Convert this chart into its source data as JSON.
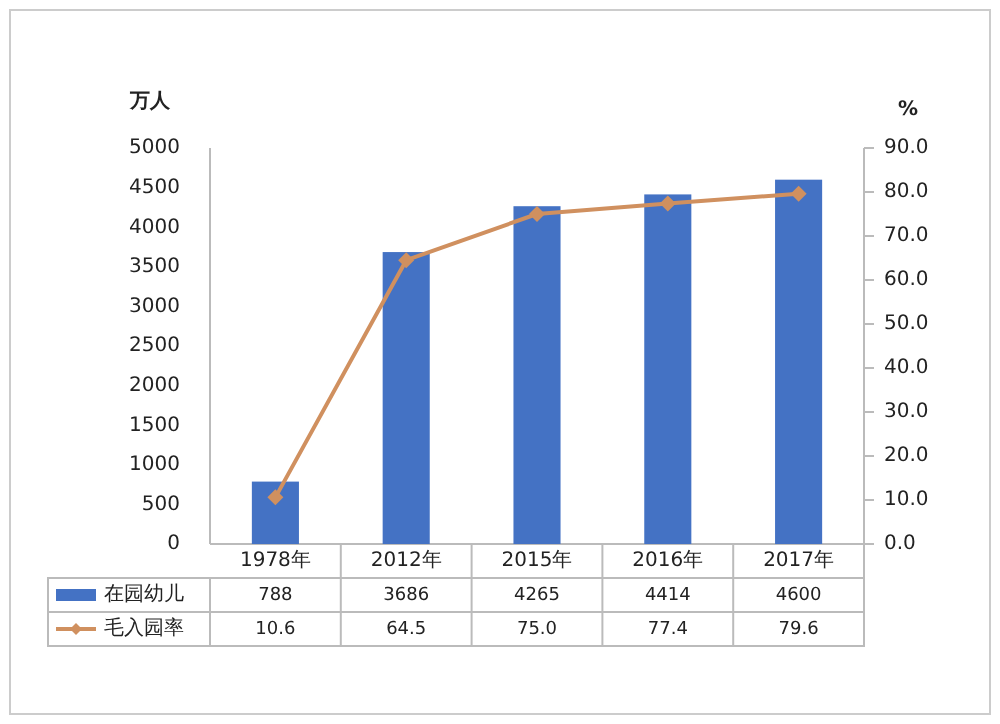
{
  "chart_data": {
    "type": "bar",
    "ylabel": "万人",
    "y2label": "%",
    "categories": [
      "1978年",
      "2012年",
      "2015年",
      "2016年",
      "2017年"
    ],
    "series": [
      {
        "name": "在园幼儿",
        "color": "#4472c4",
        "values": [
          788,
          3686,
          4265,
          4414,
          4600
        ]
      },
      {
        "name": "毛入园率",
        "type": "line",
        "axis": "y2",
        "marker": "diamond",
        "color": "#d0905f",
        "values": [
          10.6,
          64.5,
          75.0,
          77.4,
          79.6
        ],
        "value_labels": [
          "10.6",
          "64.5",
          "75.0",
          "77.4",
          "79.6"
        ]
      }
    ],
    "ylim": [
      0,
      5000
    ],
    "yticks": [
      0,
      500,
      1000,
      1500,
      2000,
      2500,
      3000,
      3500,
      4000,
      4500,
      5000
    ],
    "y2lim": [
      0,
      90
    ],
    "y2ticks": [
      {
        "value": 0,
        "label": "0.0"
      },
      {
        "value": 10,
        "label": "10.0"
      },
      {
        "value": 20,
        "label": "20.0"
      },
      {
        "value": 30,
        "label": "30.0"
      },
      {
        "value": 40,
        "label": "40.0"
      },
      {
        "value": 50,
        "label": "50.0"
      },
      {
        "value": 60,
        "label": "60.0"
      },
      {
        "value": 70,
        "label": "70.0"
      },
      {
        "value": 80,
        "label": "80.0"
      },
      {
        "value": 90,
        "label": "90.0"
      }
    ],
    "data_labels": true,
    "legend": "bottom left"
  }
}
